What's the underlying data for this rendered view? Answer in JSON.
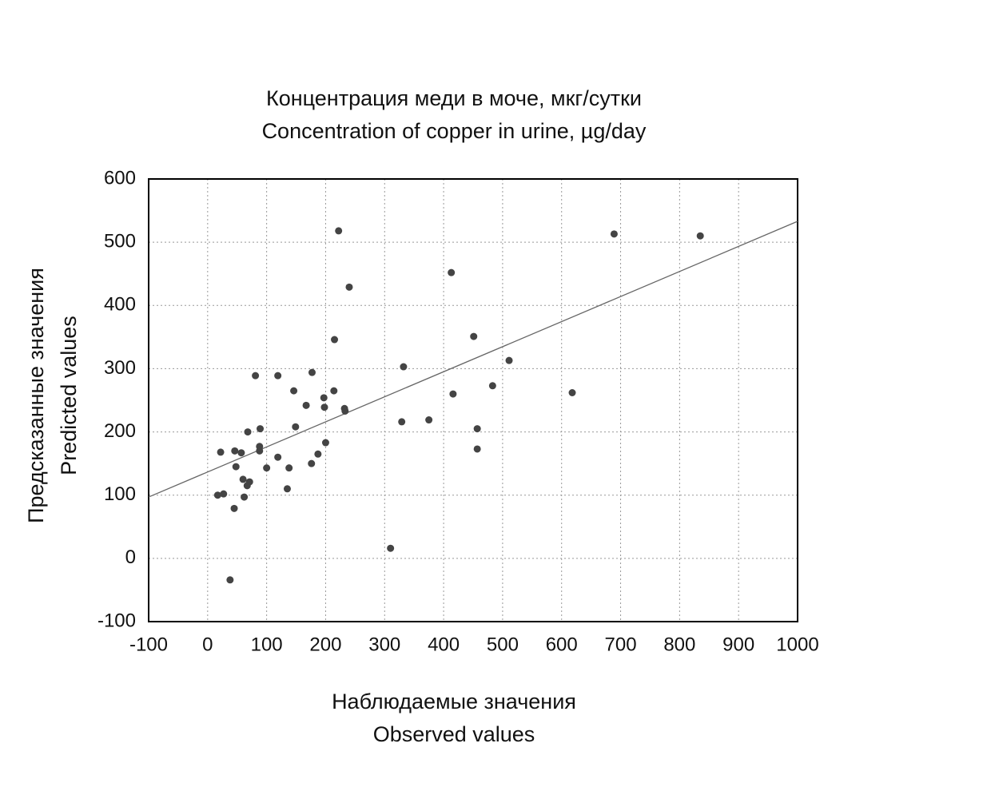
{
  "chart_data": {
    "type": "scatter",
    "title": [
      "Концентрация меди в моче, мкг/сутки",
      "Concentration of copper in urine, µg/day"
    ],
    "x_label": [
      "Наблюдаемые значения",
      "Observed values"
    ],
    "y_label": [
      "Предсказанные значения",
      "Predicted values"
    ],
    "color": "#444444",
    "x": [
      22,
      17,
      27,
      38,
      46,
      48,
      45,
      57,
      60,
      62,
      68,
      67,
      71,
      81,
      89,
      88,
      88,
      100,
      119,
      119,
      135,
      138,
      146,
      149,
      167,
      176,
      177,
      187,
      197,
      198,
      200,
      214,
      215,
      222,
      232,
      233,
      240,
      310,
      329,
      332,
      375,
      413,
      416,
      451,
      457,
      457,
      483,
      511,
      618,
      689,
      835
    ],
    "values": [
      168,
      100,
      102,
      -34,
      170,
      145,
      79,
      167,
      125,
      97,
      200,
      115,
      121,
      289,
      205,
      177,
      170,
      143,
      289,
      160,
      110,
      143,
      265,
      208,
      242,
      150,
      294,
      165,
      254,
      239,
      183,
      265,
      346,
      518,
      237,
      233,
      429,
      16,
      216,
      303,
      219,
      452,
      260,
      351,
      205,
      173,
      273,
      313,
      262,
      513,
      510
    ],
    "fit": {
      "x": [
        -100,
        1000
      ],
      "values": [
        97,
        533
      ]
    },
    "xlim": [
      -100,
      1000
    ],
    "ylim": [
      -100,
      600
    ],
    "xticks": [
      -100,
      0,
      100,
      200,
      300,
      400,
      500,
      600,
      700,
      800,
      900,
      1000
    ],
    "yticks": [
      -100,
      0,
      100,
      200,
      300,
      400,
      500,
      600
    ],
    "grid": true
  }
}
